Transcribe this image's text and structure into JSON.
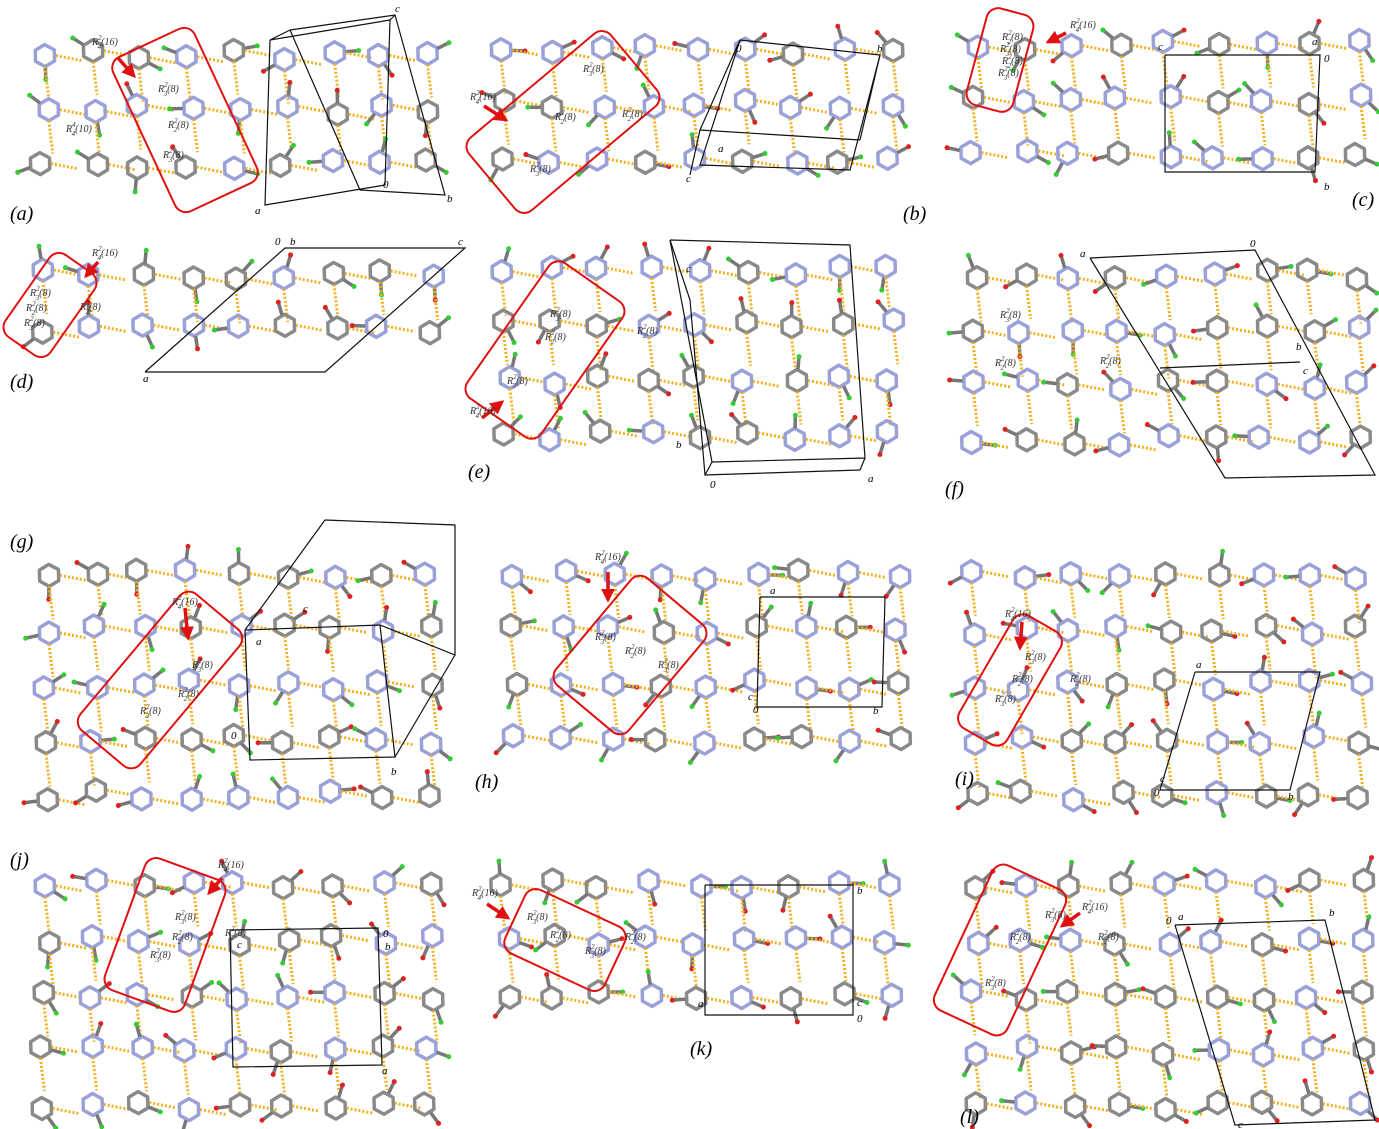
{
  "panels": [
    {
      "label": "(a)",
      "rings": [
        {
          "sup": "2",
          "sub": "4",
          "n": "(16)"
        },
        {
          "sup": "2",
          "sub": "3",
          "n": "(8)"
        },
        {
          "sup": "2",
          "sub": "2",
          "n": "(8)"
        },
        {
          "sup": "2",
          "sub": "3",
          "n": "(8)"
        },
        {
          "sup": "4",
          "sub": "4",
          "n": "(10)"
        }
      ],
      "axes": [
        "c",
        "0",
        "a",
        "b"
      ]
    },
    {
      "label": "(b)",
      "rings": [
        {
          "sup": "2",
          "sub": "4",
          "n": "(16)"
        },
        {
          "sup": "2",
          "sub": "3",
          "n": "(8)"
        },
        {
          "sup": "2",
          "sub": "2",
          "n": "(8)"
        },
        {
          "sup": "2",
          "sub": "3",
          "n": "(8)"
        },
        {
          "sup": "2",
          "sub": "2",
          "n": "(8)"
        }
      ],
      "axes": [
        "0",
        "b",
        "a",
        "c"
      ]
    },
    {
      "label": "(c)",
      "rings": [
        {
          "sup": "2",
          "sub": "4",
          "n": "(16)"
        },
        {
          "sup": "2",
          "sub": "2",
          "n": "(8)"
        },
        {
          "sup": "2",
          "sub": "3",
          "n": "(8)"
        },
        {
          "sup": "2",
          "sub": "2",
          "n": "(8)"
        },
        {
          "sup": "2",
          "sub": "3",
          "n": "(8)"
        }
      ],
      "axes": [
        "c",
        "a",
        "0",
        "b"
      ]
    },
    {
      "label": "(d)",
      "rings": [
        {
          "sup": "2",
          "sub": "4",
          "n": "(16)"
        },
        {
          "sup": "2",
          "sub": "3",
          "n": "(8)"
        },
        {
          "sup": "2",
          "sub": "2",
          "n": "(8)"
        },
        {
          "sup": "2",
          "sub": "3",
          "n": "(8)"
        },
        {
          "sup": "2",
          "sub": "2",
          "n": "(8)"
        }
      ],
      "axes": [
        "0",
        "b",
        "c",
        "a"
      ]
    },
    {
      "label": "(e)",
      "rings": [
        {
          "sup": "2",
          "sub": "3",
          "n": "(8)"
        },
        {
          "sup": "2",
          "sub": "2",
          "n": "(8)"
        },
        {
          "sup": "2",
          "sub": "2",
          "n": "(8)"
        },
        {
          "sup": "2",
          "sub": "3",
          "n": "(8)"
        },
        {
          "sup": "2",
          "sub": "4",
          "n": "(16)"
        }
      ],
      "axes": [
        "c",
        "b",
        "0",
        "a"
      ]
    },
    {
      "label": "(f)",
      "rings": [
        {
          "sup": "2",
          "sub": "3",
          "n": "(8)"
        },
        {
          "sup": "2",
          "sub": "2",
          "n": "(8)"
        },
        {
          "sup": "2",
          "sub": "2",
          "n": "(8)"
        }
      ],
      "axes": [
        "a",
        "0",
        "b",
        "c"
      ]
    },
    {
      "label": "(g)",
      "rings": [
        {
          "sup": "2",
          "sub": "4",
          "n": "(16)"
        },
        {
          "sup": "2",
          "sub": "3",
          "n": "(8)"
        },
        {
          "sup": "2",
          "sub": "2",
          "n": "(8)"
        },
        {
          "sup": "2",
          "sub": "3",
          "n": "(8)"
        }
      ],
      "axes": [
        "c",
        "a",
        "0",
        "b"
      ]
    },
    {
      "label": "(h)",
      "rings": [
        {
          "sup": "2",
          "sub": "4",
          "n": "(16)"
        },
        {
          "sup": "2",
          "sub": "3",
          "n": "(8)"
        },
        {
          "sup": "2",
          "sub": "2",
          "n": "(8)"
        },
        {
          "sup": "2",
          "sub": "3",
          "n": "(8)"
        }
      ],
      "axes": [
        "a",
        "c",
        "0",
        "b"
      ]
    },
    {
      "label": "(i)",
      "rings": [
        {
          "sup": "2",
          "sub": "4",
          "n": "(16)"
        },
        {
          "sup": "2",
          "sub": "3",
          "n": "(8)"
        },
        {
          "sup": "2",
          "sub": "2",
          "n": "(8)"
        },
        {
          "sup": "2",
          "sub": "3",
          "n": "(8)"
        },
        {
          "sup": "2",
          "sub": "2",
          "n": "(8)"
        }
      ],
      "axes": [
        "a",
        "c",
        "0",
        "b"
      ]
    },
    {
      "label": "(j)",
      "rings": [
        {
          "sup": "2",
          "sub": "4",
          "n": "(16)"
        },
        {
          "sup": "2",
          "sub": "3",
          "n": "(8)"
        },
        {
          "sup": "2",
          "sub": "2",
          "n": "(8)"
        },
        {
          "sup": "2",
          "sub": "3",
          "n": "(8)"
        },
        {
          "sup": "2",
          "sub": "2",
          "n": "(8)"
        }
      ],
      "axes": [
        "0",
        "b",
        "c",
        "a"
      ]
    },
    {
      "label": "(k)",
      "rings": [
        {
          "sup": "2",
          "sub": "4",
          "n": "(16)"
        },
        {
          "sup": "2",
          "sub": "3",
          "n": "(8)"
        },
        {
          "sup": "2",
          "sub": "2",
          "n": "(8)"
        },
        {
          "sup": "2",
          "sub": "3",
          "n": "(8)"
        },
        {
          "sup": "2",
          "sub": "2",
          "n": "(8)"
        }
      ],
      "axes": [
        "b",
        "a",
        "c",
        "0"
      ]
    },
    {
      "label": "(l)",
      "rings": [
        {
          "sup": "2",
          "sub": "4",
          "n": "(16)"
        },
        {
          "sup": "2",
          "sub": "3",
          "n": "(8)"
        },
        {
          "sup": "2",
          "sub": "2",
          "n": "(8)"
        },
        {
          "sup": "2",
          "sub": "2",
          "n": "(8)"
        },
        {
          "sup": "2",
          "sub": "3",
          "n": "(8)"
        }
      ],
      "axes": [
        "a",
        "0",
        "b",
        "c"
      ]
    }
  ]
}
